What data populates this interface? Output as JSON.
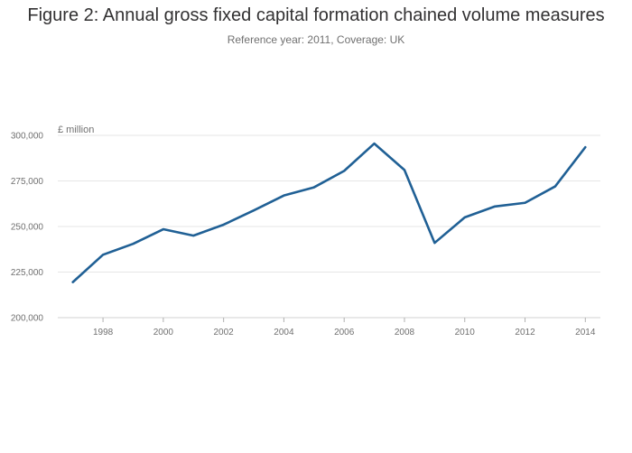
{
  "chart_data": {
    "type": "line",
    "title": "Figure 2: Annual gross fixed capital formation chained volume measures",
    "subtitle": "Reference year: 2011, Coverage: UK",
    "ylabel": "£ million",
    "xlabel": "",
    "x": [
      1997,
      1998,
      1999,
      2000,
      2001,
      2002,
      2003,
      2004,
      2005,
      2006,
      2007,
      2008,
      2009,
      2010,
      2011,
      2012,
      2013,
      2014
    ],
    "series": [
      {
        "values": [
          219500,
          234500,
          240500,
          248500,
          245000,
          251000,
          258800,
          267000,
          271500,
          280500,
          295500,
          281000,
          241000,
          255000,
          261000,
          263000,
          272000,
          293500
        ]
      }
    ],
    "xticks": [
      "1998",
      "2000",
      "2002",
      "2004",
      "2006",
      "2008",
      "2010",
      "2012",
      "2014"
    ],
    "yticks": [
      "200,000",
      "225,000",
      "250,000",
      "275,000",
      "300,000"
    ],
    "ylim": [
      200000,
      300000
    ],
    "xlim": [
      1996.5,
      2014.5
    ],
    "grid": true,
    "line_color": "#206095"
  }
}
